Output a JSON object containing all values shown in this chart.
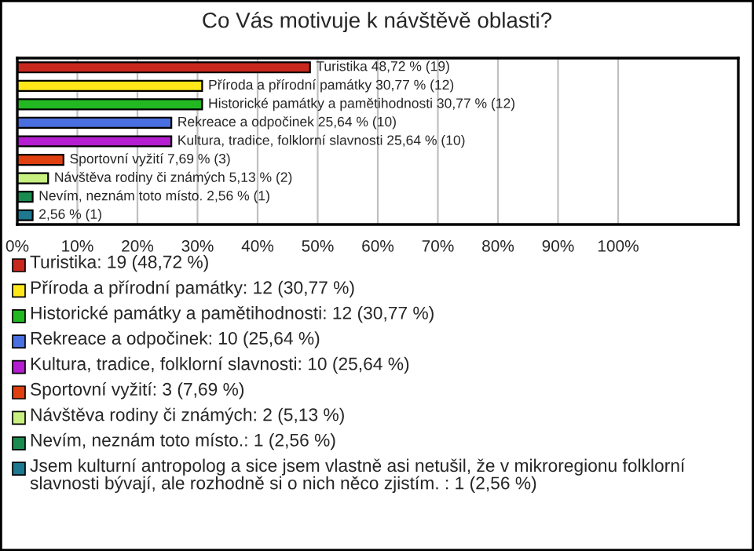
{
  "chart_data": {
    "type": "bar",
    "orientation": "horizontal",
    "title": "Co Vás motivuje k návštěvě oblasti?",
    "categories": [
      null,
      null,
      null,
      null,
      null,
      null,
      null,
      null,
      null
    ],
    "series": [
      {
        "name": "Turistika: 19 (48,72 %)",
        "color": "#c8281e",
        "values": [
          48.72,
          null,
          null,
          null,
          null,
          null,
          null,
          null,
          null
        ],
        "value_labels": [
          "Turistika 48,72 % (19)",
          null,
          null,
          null,
          null,
          null,
          null,
          null,
          null
        ]
      },
      {
        "name": "Příroda a přírodní památky: 12 (30,77 %)",
        "color": "#ffe81a",
        "values": [
          null,
          30.77,
          null,
          null,
          null,
          null,
          null,
          null,
          null
        ],
        "value_labels": [
          null,
          "Příroda a přírodní památky 30,77 % (12)",
          null,
          null,
          null,
          null,
          null,
          null,
          null
        ]
      },
      {
        "name": "Historické památky a pamětihodnosti: 12 (30,77 %)",
        "color": "#22b822",
        "values": [
          null,
          null,
          30.77,
          null,
          null,
          null,
          null,
          null,
          null
        ],
        "value_labels": [
          null,
          null,
          "Historické památky a pamětihodnosti 30,77 % (12)",
          null,
          null,
          null,
          null,
          null,
          null
        ]
      },
      {
        "name": "Rekreace a odpočinek: 10 (25,64 %)",
        "color": "#4a6fe0",
        "values": [
          null,
          null,
          null,
          25.64,
          null,
          null,
          null,
          null,
          null
        ],
        "value_labels": [
          null,
          null,
          null,
          "Rekreace a odpočinek 25,64 % (10)",
          null,
          null,
          null,
          null,
          null
        ]
      },
      {
        "name": "Kultura, tradice, folklorní slavnosti: 10 (25,64 %)",
        "color": "#b41ed0",
        "values": [
          null,
          null,
          null,
          null,
          25.64,
          null,
          null,
          null,
          null
        ],
        "value_labels": [
          null,
          null,
          null,
          null,
          "Kultura, tradice, folklorní slavnosti 25,64 % (10)",
          null,
          null,
          null,
          null
        ]
      },
      {
        "name": "Sportovní vyžití: 3 (7,69 %)",
        "color": "#e04010",
        "values": [
          null,
          null,
          null,
          null,
          null,
          7.69,
          null,
          null,
          null
        ],
        "value_labels": [
          null,
          null,
          null,
          null,
          null,
          "Sportovní vyžití 7,69 % (3)",
          null,
          null,
          null
        ]
      },
      {
        "name": "Návštěva rodiny či známých: 2 (5,13 %)",
        "color": "#c8f080",
        "values": [
          null,
          null,
          null,
          null,
          null,
          null,
          5.13,
          null,
          null
        ],
        "value_labels": [
          null,
          null,
          null,
          null,
          null,
          null,
          "Návštěva rodiny či známých 5,13 % (2)",
          null,
          null
        ]
      },
      {
        "name": "Nevím, neznám toto místo.: 1 (2,56 %)",
        "color": "#1a8c50",
        "values": [
          null,
          null,
          null,
          null,
          null,
          null,
          null,
          2.56,
          null
        ],
        "value_labels": [
          null,
          null,
          null,
          null,
          null,
          null,
          null,
          "Nevím, neznám toto místo. 2,56 % (1)",
          null
        ]
      },
      {
        "name": "Jsem kulturní antropolog a sice jsem vlastně asi netušil, že v mikroregionu folklorní slavnosti bývají, ale rozhodně si o nich něco zjistím. : 1 (2,56 %)",
        "color": "#1e7890",
        "values": [
          null,
          null,
          null,
          null,
          null,
          null,
          null,
          null,
          2.56
        ],
        "value_labels": [
          null,
          null,
          null,
          null,
          null,
          null,
          null,
          null,
          "2,56 % (1)"
        ]
      }
    ],
    "xlim": [
      0,
      120
    ],
    "xticks": [
      {
        "value": 0,
        "label": "0%"
      },
      {
        "value": 10,
        "label": "10%"
      },
      {
        "value": 20,
        "label": "20%"
      },
      {
        "value": 30,
        "label": "30%"
      },
      {
        "value": 40,
        "label": "40%"
      },
      {
        "value": 50,
        "label": "50%"
      },
      {
        "value": 60,
        "label": "60%"
      },
      {
        "value": 70,
        "label": "70%"
      },
      {
        "value": 80,
        "label": "80%"
      },
      {
        "value": 90,
        "label": "90%"
      },
      {
        "value": 100,
        "label": "100%"
      }
    ],
    "grid": "x",
    "legend": "bottom",
    "tick_labels": "x"
  }
}
